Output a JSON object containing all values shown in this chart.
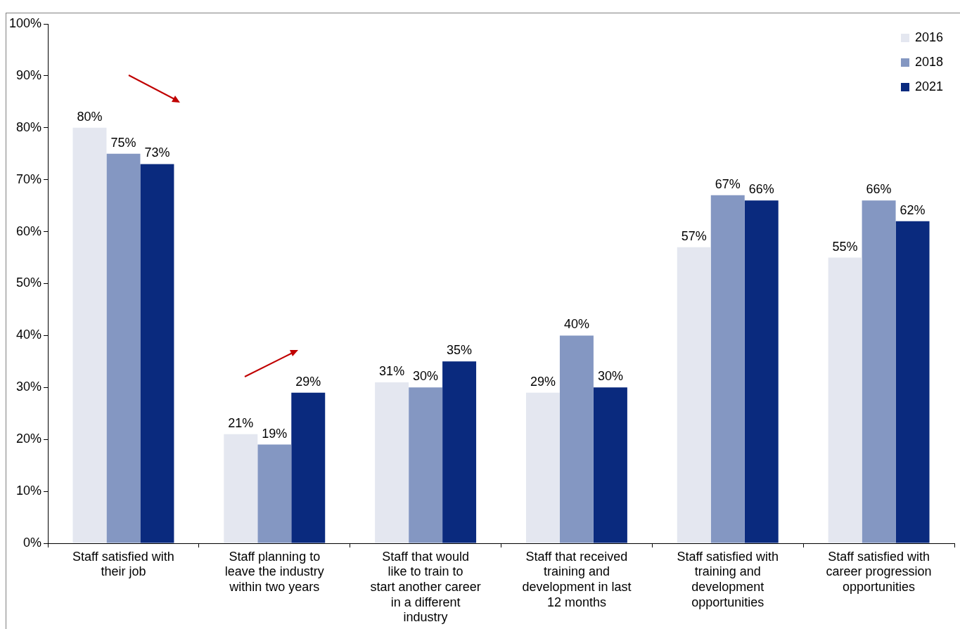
{
  "chart_data": {
    "type": "bar",
    "categories": [
      "Staff satisfied with their job",
      "Staff planning to leave the industry within two years",
      "Staff that would like to train to start another career in a different industry",
      "Staff that received training and development in last 12 months",
      "Staff satisfied with training and development opportunities",
      "Staff satisfied with career progression opportunities"
    ],
    "series": [
      {
        "name": "2016",
        "color": "#e4e7f0",
        "values": [
          80,
          21,
          31,
          29,
          57,
          55
        ],
        "value_labels": [
          "80%",
          "21%",
          "31%",
          "29%",
          "57%",
          "55%"
        ]
      },
      {
        "name": "2018",
        "color": "#8497c2",
        "values": [
          75,
          19,
          30,
          40,
          67,
          66
        ],
        "value_labels": [
          "75%",
          "19%",
          "30%",
          "40%",
          "67%",
          "66%"
        ]
      },
      {
        "name": "2021",
        "color": "#0a2a7e",
        "values": [
          73,
          29,
          35,
          30,
          66,
          62
        ],
        "value_labels": [
          "73%",
          "29%",
          "35%",
          "30%",
          "66%",
          "62%"
        ]
      }
    ],
    "ylim": [
      0,
      100
    ],
    "yticks": [
      {
        "value": 0,
        "label": "0%"
      },
      {
        "value": 10,
        "label": "10%"
      },
      {
        "value": 20,
        "label": "20%"
      },
      {
        "value": 30,
        "label": "30%"
      },
      {
        "value": 40,
        "label": "40%"
      },
      {
        "value": 50,
        "label": "50%"
      },
      {
        "value": 60,
        "label": "60%"
      },
      {
        "value": 70,
        "label": "70%"
      },
      {
        "value": 80,
        "label": "80%"
      },
      {
        "value": 90,
        "label": "90%"
      },
      {
        "value": 100,
        "label": "100%"
      }
    ],
    "grid": false,
    "legend": "top right"
  }
}
